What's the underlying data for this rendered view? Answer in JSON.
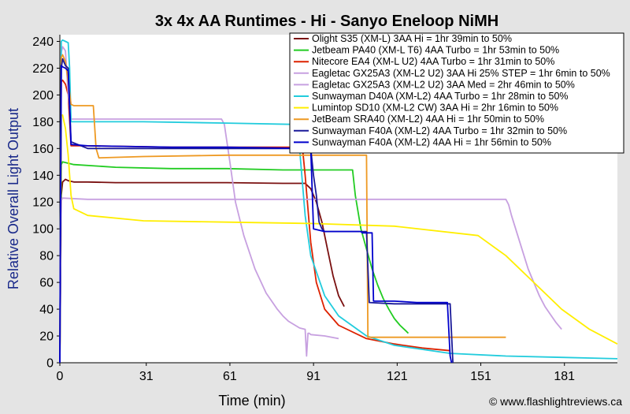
{
  "chart_data": {
    "type": "line",
    "title": "3x 4x AA Runtimes - Hi - Sanyo Eneloop NiMH",
    "xlabel": "Time (min)",
    "ylabel": "Relative Overall Light Output",
    "credit": "© www.flashlightreviews.ca",
    "xlim": [
      0,
      200
    ],
    "ylim": [
      0,
      245
    ],
    "xticks": [
      0,
      31,
      61,
      91,
      121,
      151,
      181
    ],
    "yticks": [
      0,
      20,
      40,
      60,
      80,
      100,
      120,
      140,
      160,
      180,
      200,
      220,
      240
    ],
    "grid": false,
    "legend_position": "top-right",
    "series": [
      {
        "name": "Olight S35 (XM-L) 3AA Hi = 1hr 39min to 50%",
        "color": "#7a1010",
        "x": [
          0,
          0.5,
          1,
          2,
          3,
          5,
          10,
          20,
          40,
          60,
          80,
          88,
          90,
          92,
          94,
          96,
          98,
          100,
          102
        ],
        "y": [
          0,
          125,
          135,
          137,
          136,
          135,
          135,
          134.5,
          134.5,
          134.5,
          134,
          134,
          130,
          120,
          105,
          85,
          65,
          50,
          42
        ]
      },
      {
        "name": "Jetbeam PA40 (XM-L T6) 4AA Turbo = 1hr 53min to 50%",
        "color": "#22cc22",
        "x": [
          0,
          0.5,
          1,
          5,
          20,
          40,
          60,
          80,
          100,
          105,
          106,
          108,
          110,
          112,
          114,
          116,
          118,
          120,
          122,
          124,
          125
        ],
        "y": [
          0,
          148,
          150,
          148,
          146,
          145,
          145,
          144,
          144,
          144,
          125,
          100,
          85,
          70,
          58,
          48,
          40,
          33,
          28,
          24,
          22
        ]
      },
      {
        "name": "Nitecore EA4 (XM-L U2) 4AA Turbo = 1hr 31min to 50%",
        "color": "#dd2200",
        "x": [
          0,
          0.5,
          1,
          2,
          3,
          4,
          10,
          40,
          70,
          87,
          88,
          90,
          92,
          95,
          100,
          110,
          120,
          130,
          140
        ],
        "y": [
          0,
          210,
          211,
          208,
          200,
          162,
          162,
          161,
          161,
          161,
          140,
          90,
          60,
          40,
          28,
          18,
          14,
          11,
          9
        ]
      },
      {
        "name": "Eagletac GX25A3 (XM-L2 U2) 3AA Hi 25% STEP = 1hr 6min to 50%",
        "color": "#c7a0e0",
        "x": [
          0,
          0.5,
          1,
          2,
          3,
          4,
          10,
          30,
          58,
          59,
          61,
          63,
          66,
          70,
          74,
          78,
          80,
          82,
          86,
          88,
          88.5,
          89,
          89.5,
          90,
          95,
          100
        ],
        "y": [
          0,
          232,
          236,
          233,
          200,
          182,
          182,
          182,
          182,
          178,
          150,
          120,
          95,
          70,
          52,
          40,
          35,
          31,
          26,
          25,
          5,
          22,
          22,
          21,
          20,
          18
        ]
      },
      {
        "name": "Eagletac GX25A3 (XM-L2 U2) 3AA Med = 2hr 46min to 50%",
        "color": "#c7a0e0",
        "x": [
          0,
          0.5,
          1,
          10,
          50,
          100,
          150,
          160,
          161,
          162,
          165,
          168,
          170,
          172,
          174,
          176,
          178,
          180
        ],
        "y": [
          0,
          121,
          123,
          122,
          122,
          122,
          122,
          122,
          118,
          110,
          90,
          70,
          60,
          50,
          42,
          36,
          30,
          25
        ]
      },
      {
        "name": "Sunwayman D40A (XM-L2) 4AA Turbo = 1hr 28min to 50%",
        "color": "#22ccdd",
        "x": [
          0,
          0.5,
          1,
          2,
          3,
          3.5,
          4,
          30,
          60,
          85,
          86,
          88,
          90,
          95,
          100,
          110,
          120,
          140,
          160,
          180,
          200
        ],
        "y": [
          0,
          240,
          241,
          240,
          239,
          220,
          180,
          180,
          179,
          178,
          160,
          110,
          80,
          50,
          35,
          20,
          13,
          7,
          5,
          4,
          3
        ]
      },
      {
        "name": "Lumintop SD10 (XM-L2 CW) 3AA Hi = 2hr 16min to 50%",
        "color": "#ffee00",
        "x": [
          0,
          0.5,
          1,
          2,
          3,
          4,
          5,
          10,
          30,
          60,
          90,
          120,
          150,
          160,
          170,
          180,
          190,
          200
        ],
        "y": [
          0,
          185,
          185,
          175,
          155,
          125,
          115,
          110,
          106,
          105,
          104,
          102,
          95,
          80,
          60,
          40,
          25,
          14
        ]
      },
      {
        "name": "JetBeam SRA40 (XM-L2) 4AA Hi = 1hr 50min to 50%",
        "color": "#ee9922",
        "x": [
          0,
          0.5,
          1,
          2,
          3,
          4,
          5,
          12,
          13,
          14,
          30,
          60,
          86,
          88,
          110,
          110.5,
          111,
          130,
          155,
          160
        ],
        "y": [
          0,
          228,
          230,
          225,
          210,
          193,
          192,
          192,
          160,
          153,
          154,
          155,
          155,
          155,
          155,
          19,
          19,
          19,
          19,
          19
        ]
      },
      {
        "name": "Sunwayman F40A (XM-L2) 4AA Turbo = 1hr 32min to 50%",
        "color": "#1a1a99",
        "x": [
          0,
          0.5,
          1,
          2,
          3,
          4,
          10,
          40,
          70,
          90,
          91,
          92,
          93,
          94,
          95,
          110,
          111,
          120,
          140,
          141
        ],
        "y": [
          0,
          220,
          227,
          222,
          220,
          165,
          160,
          160,
          160,
          160,
          140,
          125,
          105,
          100,
          98,
          98,
          45,
          44,
          44,
          0
        ]
      },
      {
        "name": "Sunwayman F40A (XM-L2) 4AA Hi = 1hr 56min to 50%",
        "color": "#0000cc",
        "x": [
          0,
          0.5,
          1,
          2,
          3,
          4,
          10,
          40,
          60,
          90,
          91,
          95,
          100,
          105,
          108,
          108.5,
          112,
          112.5,
          120,
          128,
          138,
          139,
          140,
          140.5
        ],
        "y": [
          0,
          222,
          221,
          220,
          218,
          163,
          162,
          161,
          161,
          160,
          100,
          98,
          98,
          98,
          98,
          97,
          97,
          46,
          46,
          45,
          45,
          45,
          5,
          0
        ]
      }
    ]
  }
}
